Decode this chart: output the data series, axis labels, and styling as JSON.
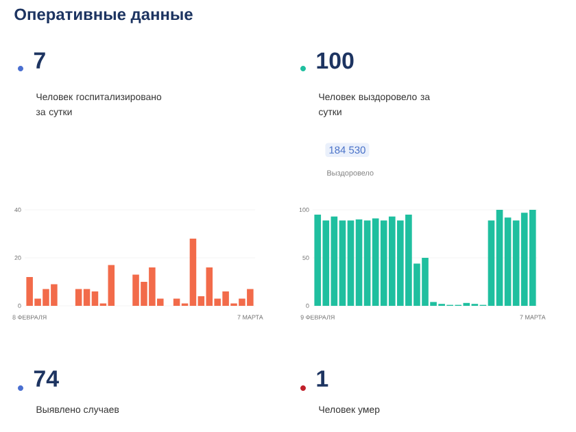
{
  "chart_data": [
    {
      "type": "other",
      "title": "Оперативные данные"
    },
    {
      "type": "bar",
      "title": "7",
      "subtitle": "Человек госпитализировано за сутки",
      "categories": [
        "8 ФЕВРАЛЯ",
        null,
        null,
        null,
        null,
        null,
        null,
        null,
        null,
        null,
        null,
        null,
        null,
        null,
        null,
        null,
        null,
        null,
        null,
        null,
        null,
        null,
        null,
        null,
        null,
        null,
        null,
        "7 МАРТА"
      ],
      "values": [
        12,
        3,
        7,
        9,
        null,
        null,
        7,
        7,
        6,
        1,
        17,
        null,
        null,
        13,
        10,
        16,
        3,
        null,
        3,
        1,
        28,
        4,
        16,
        3,
        6,
        1,
        3,
        7
      ],
      "color": "#f26b4a",
      "ylim": [
        0,
        40
      ],
      "yticks": [
        0,
        20,
        40
      ],
      "grid": "y"
    },
    {
      "type": "bar",
      "title": "100",
      "subtitle": "Человек выздоровело за сутки",
      "annotations": [
        "184 530",
        "Выздоровело"
      ],
      "categories": [
        "9 ФЕВРАЛЯ",
        null,
        null,
        null,
        null,
        null,
        null,
        null,
        null,
        null,
        null,
        null,
        null,
        null,
        null,
        null,
        null,
        null,
        null,
        null,
        null,
        null,
        null,
        null,
        null,
        null,
        "7 МАРТА"
      ],
      "values": [
        95,
        89,
        93,
        89,
        89,
        90,
        89,
        91,
        89,
        93,
        89,
        95,
        44,
        50,
        4,
        2,
        1,
        1,
        3,
        2,
        1,
        89,
        100,
        92,
        89,
        97,
        100
      ],
      "color": "#1fbf9f",
      "ylim": [
        0,
        100
      ],
      "yticks": [
        0,
        50,
        100
      ],
      "grid": "y"
    },
    {
      "type": "other",
      "annotations": [
        "74",
        "Выявлено случаев",
        "1",
        "Человек умер"
      ]
    }
  ]
}
